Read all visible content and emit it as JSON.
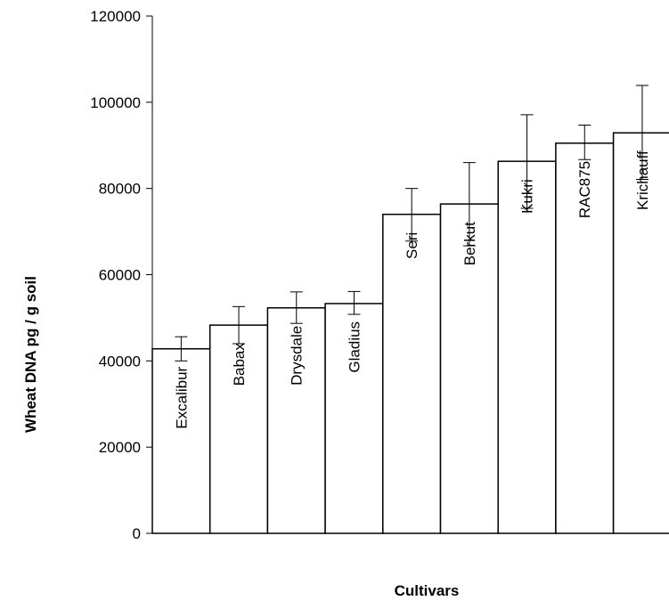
{
  "chart_data": {
    "type": "bar",
    "title": "",
    "xlabel": "Cultivars",
    "ylabel": "Wheat DNA pg / g soil",
    "ylim": [
      0,
      120000
    ],
    "yticks": [
      0,
      20000,
      40000,
      60000,
      80000,
      100000,
      120000
    ],
    "ytick_labels": [
      "0",
      "20000",
      "40000",
      "60000",
      "80000",
      "100000",
      "120000"
    ],
    "grid": false,
    "legend": "none",
    "bar_color": "#ffffff",
    "edge_color": "#000000",
    "categories": [
      "Excalibur",
      "Babax",
      "Drysdale",
      "Gladius",
      "Seri",
      "Berkut",
      "Kukri",
      "RAC875",
      "Krichauff"
    ],
    "values": [
      42800,
      48300,
      52300,
      53300,
      74000,
      76400,
      86300,
      90500,
      92900
    ],
    "error_low": [
      40000,
      44000,
      48700,
      50800,
      67800,
      66700,
      75400,
      86700,
      82100
    ],
    "error_high": [
      45600,
      52600,
      56000,
      56100,
      80000,
      86000,
      97100,
      94700,
      103900
    ]
  }
}
